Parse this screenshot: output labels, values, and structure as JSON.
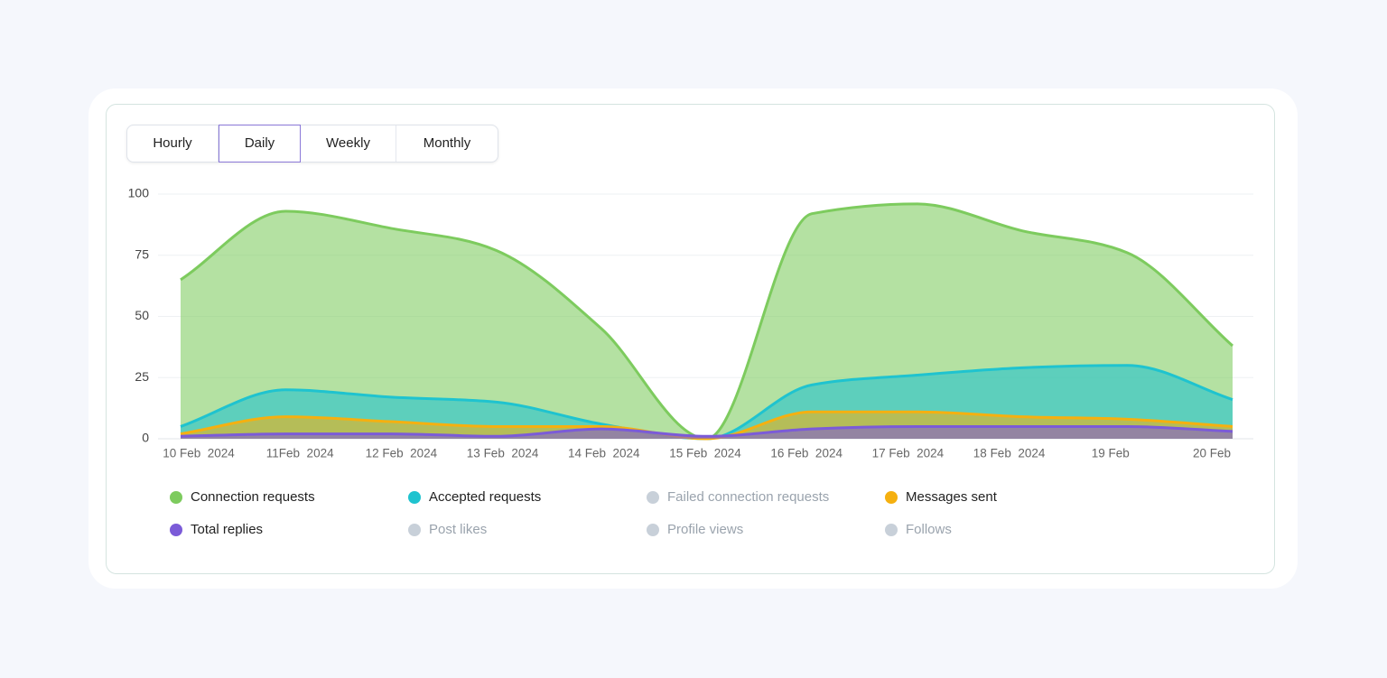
{
  "tabs": [
    "Hourly",
    "Daily",
    "Weekly",
    "Monthly"
  ],
  "selected_tab": 1,
  "chart_data": {
    "type": "area",
    "categories": [
      "10 Feb  2024",
      "11Feb  2024",
      "12 Feb  2024",
      "13 Feb  2024",
      "14 Feb  2024",
      "15 Feb  2024",
      "16 Feb  2024",
      "17 Feb  2024",
      "18 Feb  2024",
      "19 Feb",
      "20 Feb"
    ],
    "series": [
      {
        "name": "Connection requests",
        "color": "#7dcb5e",
        "values": [
          65,
          93,
          86,
          77,
          45,
          0,
          92,
          96,
          85,
          76,
          38
        ]
      },
      {
        "name": "Accepted requests",
        "color": "#1fc3cf",
        "values": [
          5,
          20,
          17,
          15,
          6,
          0,
          22,
          26,
          29,
          30,
          16
        ]
      },
      {
        "name": "Failed connection requests",
        "color": "#c8d0d9",
        "active": false
      },
      {
        "name": "Messages sent",
        "color": "#f5b010",
        "values": [
          2,
          9,
          7,
          5,
          5,
          0,
          11,
          11,
          9,
          8,
          5
        ]
      },
      {
        "name": "Total replies",
        "color": "#7b5bd8",
        "values": [
          1,
          2,
          2,
          1,
          4,
          1,
          4,
          5,
          5,
          5,
          3
        ]
      },
      {
        "name": "Post likes",
        "color": "#c8d0d9",
        "active": false
      },
      {
        "name": "Profile views",
        "color": "#c8d0d9",
        "active": false
      },
      {
        "name": "Follows",
        "color": "#c8d0d9",
        "active": false
      }
    ],
    "ylim": [
      0,
      100
    ],
    "yticks": [
      0,
      25,
      50,
      75,
      100
    ],
    "grid": true
  }
}
